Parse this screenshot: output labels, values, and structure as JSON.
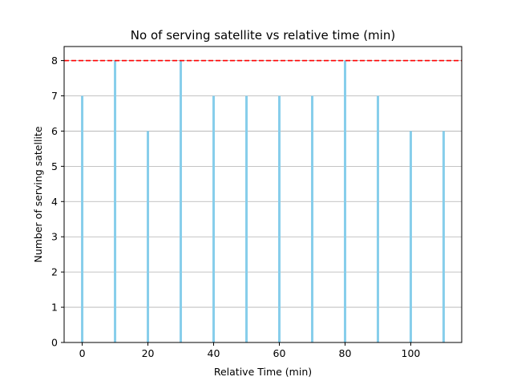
{
  "chart_data": {
    "type": "bar",
    "title": "No of serving satellite vs relative time (min)",
    "xlabel": "Relative Time (min)",
    "ylabel": "Number of serving satellite",
    "x": [
      0,
      10,
      20,
      30,
      40,
      50,
      60,
      70,
      80,
      90,
      100,
      110
    ],
    "values": [
      7,
      8,
      6,
      8,
      7,
      7,
      7,
      7,
      8,
      7,
      6,
      6
    ],
    "xlim": [
      -5.5,
      115.5
    ],
    "ylim": [
      0,
      8.4
    ],
    "xticks": [
      0,
      20,
      40,
      60,
      80,
      100
    ],
    "yticks": [
      0,
      1,
      2,
      3,
      4,
      5,
      6,
      7,
      8
    ],
    "grid": "horizontal",
    "reference_line": {
      "y": 8,
      "style": "dashed",
      "color": "#ff0000"
    },
    "bar_color": "#87ceeb"
  }
}
